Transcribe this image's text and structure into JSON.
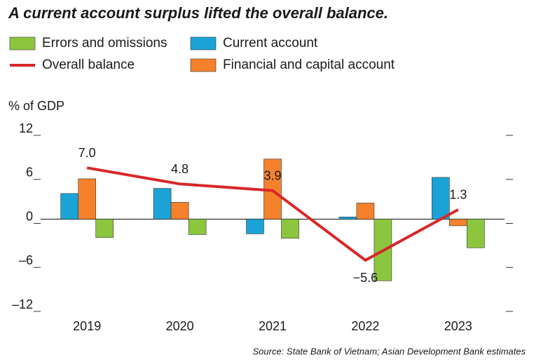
{
  "chart_data": {
    "type": "bar",
    "title": "A current account surplus lifted the overall balance.",
    "y_label": "% of GDP",
    "source": "Source: State Bank of Vietnam; Asian Development Bank estimates",
    "categories": [
      "2019",
      "2020",
      "2021",
      "2022",
      "2023"
    ],
    "series": [
      {
        "name": "Current account",
        "color": "#1ba3d8",
        "values": [
          3.5,
          4.2,
          -2.0,
          0.3,
          5.7
        ]
      },
      {
        "name": "Financial and capital account",
        "color": "#f5812c",
        "values": [
          5.5,
          2.3,
          8.2,
          2.2,
          -0.9
        ]
      },
      {
        "name": "Errors and omissions",
        "color": "#8cc63f",
        "values": [
          -2.5,
          -2.1,
          -2.6,
          -8.4,
          -3.9
        ]
      },
      {
        "name": "Overall balance",
        "type": "line",
        "color": "#d7282a",
        "values": [
          7.0,
          4.8,
          3.9,
          -5.6,
          1.3
        ],
        "value_labels": [
          "7.0",
          "4.8",
          "3.9",
          "−5.6",
          "1.3"
        ]
      }
    ],
    "ylim": [
      -12,
      12
    ],
    "yticks": [
      {
        "value": -12,
        "label": "–12"
      },
      {
        "value": -6,
        "label": "–6"
      },
      0,
      6,
      12
    ]
  }
}
